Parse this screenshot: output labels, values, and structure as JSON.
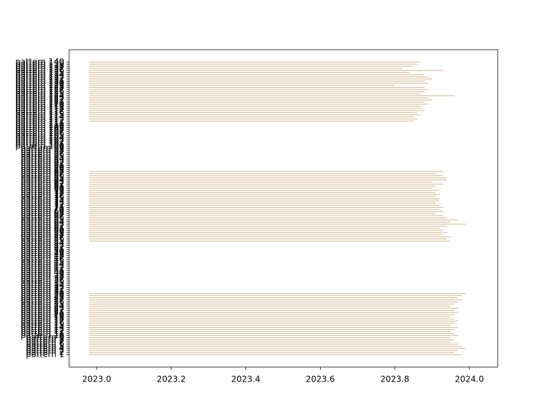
{
  "chart_data": {
    "type": "barh",
    "color": "#d2b48c",
    "bar_start": 2022.98,
    "categories": [
      "pattern 1",
      "pattern 2",
      "pattern 3",
      "pattern 4",
      "pattern 5",
      "pattern 6",
      "pattern 7",
      "pattern 8",
      "pattern 9",
      "pattern 10",
      "pattern 11",
      "pattern 12",
      "pattern 13",
      "pattern 14",
      "pattern 15",
      "pattern 16",
      "pattern 17",
      "pattern 18",
      "pattern 19",
      "pattern 20",
      "pattern 21",
      "pattern 22",
      "pattern 23",
      "pattern 24",
      "pattern 25",
      "pattern 26",
      "pattern 27",
      "pattern 28",
      "pattern 29",
      "pattern 30",
      "pattern 31",
      "pattern 32",
      "pattern 33",
      "pattern 34",
      "pattern 35",
      "pattern 36",
      "pattern 37",
      "pattern 38",
      "pattern 39",
      "pattern 40",
      "pattern 41",
      "pattern 42",
      "pattern 43",
      "pattern 44",
      "pattern 45",
      "pattern 46",
      "pattern 47",
      "pattern 48",
      "pattern 49",
      "pattern 50",
      "pattern 51",
      "pattern 52",
      "pattern 53",
      "pattern 54",
      "pattern 55",
      "pattern 56",
      "pattern 57",
      "pattern 58",
      "pattern 59",
      "pattern 60",
      "pattern 61",
      "pattern 62",
      "pattern 63",
      "pattern 64",
      "pattern 65",
      "pattern 66",
      "pattern 67",
      "pattern 68",
      "pattern 69",
      "pattern 70",
      "pattern 71",
      "pattern 72",
      "pattern 73",
      "pattern 74",
      "pattern 75",
      "pattern 76",
      "pattern 77",
      "pattern 78",
      "pattern 79",
      "pattern 80",
      "pattern 81",
      "pattern 82",
      "pattern 83",
      "pattern 84",
      "pattern 85",
      "pattern 86",
      "pattern 87",
      "pattern 88",
      "pattern 89",
      "pattern 90",
      "pattern 91",
      "pattern 92",
      "pattern 93",
      "pattern 94",
      "pattern 95",
      "pattern 96",
      "pattern 97",
      "pattern 98",
      "pattern 99",
      "pattern 100",
      "pattern 101",
      "pattern 102",
      "pattern 103",
      "pattern 104",
      "pattern 105",
      "pattern 106",
      "pattern 107",
      "pattern 108",
      "pattern 109",
      "pattern 110",
      "pattern 111",
      "pattern 112",
      "pattern 113",
      "pattern 114",
      "pattern 115",
      "pattern 116",
      "pattern 117",
      "pattern 118",
      "pattern 119",
      "pattern 120",
      "pattern 121",
      "pattern 122",
      "pattern 123",
      "pattern 124",
      "pattern 125",
      "pattern 126",
      "pattern 127",
      "pattern 128",
      "pattern 129",
      "pattern 130",
      "pattern 131",
      "pattern 132",
      "pattern 133",
      "pattern 134",
      "pattern 135",
      "pattern 136",
      "pattern 137",
      "pattern 138",
      "pattern 139",
      "pattern 140"
    ],
    "values": [
      2023.98,
      2023.96,
      2023.97,
      2023.99,
      2023.98,
      2023.97,
      2023.95,
      2023.96,
      2023.95,
      2023.97,
      2023.96,
      2023.95,
      2023.96,
      2023.97,
      2023.95,
      2023.96,
      2023.97,
      2023.96,
      2023.95,
      2023.96,
      2023.97,
      2023.96,
      2023.97,
      2023.95,
      2023.96,
      2023.97,
      2023.98,
      2023.97,
      2023.98,
      2023.99,
      null,
      null,
      null,
      null,
      null,
      null,
      null,
      null,
      null,
      null,
      null,
      null,
      null,
      null,
      null,
      null,
      null,
      null,
      null,
      null,
      null,
      null,
      null,
      null,
      2023.95,
      2023.94,
      2023.95,
      2023.93,
      2023.94,
      2023.93,
      2023.92,
      2023.94,
      2023.99,
      2023.95,
      2023.97,
      2023.94,
      2023.93,
      2023.91,
      2023.93,
      2023.92,
      2023.93,
      2023.92,
      2023.91,
      2023.92,
      2023.92,
      2023.91,
      2023.92,
      2023.91,
      2023.92,
      2023.9,
      2023.91,
      2023.93,
      2023.9,
      2023.94,
      2023.94,
      2023.93,
      2023.91,
      2023.93,
      null,
      null,
      null,
      null,
      null,
      null,
      null,
      null,
      null,
      null,
      null,
      null,
      null,
      null,
      null,
      null,
      null,
      null,
      null,
      null,
      null,
      null,
      null,
      2023.85,
      2023.86,
      2023.85,
      2023.87,
      2023.86,
      2023.88,
      2023.87,
      2023.87,
      2023.89,
      2023.88,
      2023.9,
      2023.89,
      2023.96,
      2023.87,
      2023.88,
      2023.89,
      2023.88,
      2023.8,
      2023.89,
      2023.88,
      2023.9,
      2023.89,
      2023.88,
      2023.84,
      2023.93,
      2023.82,
      2023.85,
      2023.86,
      2023.87
    ],
    "xlim": [
      2022.926,
      2024.076
    ],
    "xticks": [
      {
        "value": 2023,
        "label": "2023.0"
      },
      2023.2,
      2023.4,
      2023.6,
      2023.8,
      {
        "value": 2024,
        "label": "2024.0"
      }
    ]
  }
}
